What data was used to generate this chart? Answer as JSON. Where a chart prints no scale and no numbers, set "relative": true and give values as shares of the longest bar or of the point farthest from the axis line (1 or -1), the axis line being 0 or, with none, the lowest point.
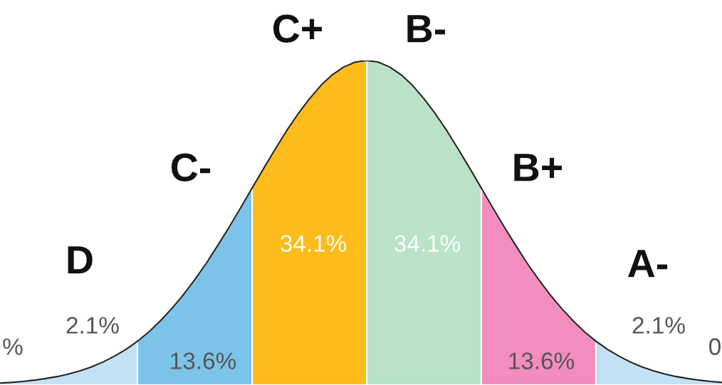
{
  "chart_data": {
    "type": "area",
    "relative": true,
    "categories": [
      null,
      null,
      null,
      null,
      null,
      null,
      null,
      null,
      null,
      null,
      null,
      null,
      null,
      null,
      null,
      null,
      null,
      null,
      null,
      null,
      null,
      null,
      null,
      null,
      null,
      null,
      null,
      null,
      null,
      null,
      null,
      null,
      null,
      null,
      null,
      null,
      null,
      null,
      null,
      null,
      null,
      null,
      null,
      null,
      null,
      null,
      null,
      null,
      null,
      null,
      null,
      null,
      null,
      null,
      null,
      null,
      null,
      null,
      null,
      null,
      null,
      null,
      null,
      null
    ],
    "series": [
      {
        "color": "#c2e1f4",
        "values": [
          0.006,
          0.008,
          0.011,
          0.015,
          0.02,
          0.026,
          0.034,
          0.044,
          0.056,
          0.071,
          0.089,
          0.11,
          0.135,
          null,
          null,
          null,
          null,
          null,
          null,
          null,
          null,
          null,
          null,
          null,
          null,
          null,
          null,
          null,
          null,
          null,
          null,
          null,
          null,
          null,
          null,
          null,
          null,
          null,
          null,
          null,
          null,
          null,
          null,
          null,
          null,
          null,
          null,
          null,
          null,
          null,
          null,
          null,
          null,
          null,
          null,
          null,
          null,
          null,
          null,
          null,
          null,
          null,
          null,
          null
        ]
      },
      {
        "color": "#7cc3e9",
        "values": [
          null,
          null,
          null,
          null,
          null,
          null,
          null,
          null,
          null,
          null,
          null,
          null,
          0.135,
          0.164,
          0.198,
          0.236,
          0.278,
          0.325,
          0.375,
          0.43,
          0.487,
          0.546,
          0.607,
          null,
          null,
          null,
          null,
          null,
          null,
          null,
          null,
          null,
          null,
          null,
          null,
          null,
          null,
          null,
          null,
          null,
          null,
          null,
          null,
          null,
          null,
          null,
          null,
          null,
          null,
          null,
          null,
          null,
          null,
          null,
          null,
          null,
          null,
          null,
          null,
          null,
          null,
          null,
          null,
          null
        ]
      },
      {
        "color": "#fdbc1b",
        "values": [
          null,
          null,
          null,
          null,
          null,
          null,
          null,
          null,
          null,
          null,
          null,
          null,
          null,
          null,
          null,
          null,
          null,
          null,
          null,
          null,
          null,
          null,
          0.607,
          0.667,
          0.726,
          0.783,
          0.835,
          0.882,
          0.923,
          0.956,
          0.98,
          0.995,
          1.0,
          null,
          null,
          null,
          null,
          null,
          null,
          null,
          null,
          null,
          null,
          null,
          null,
          null,
          null,
          null,
          null,
          null,
          null,
          null,
          null,
          null,
          null,
          null,
          null,
          null,
          null,
          null,
          null,
          null,
          null,
          null
        ]
      },
      {
        "color": "#bae2c7",
        "values": [
          null,
          null,
          null,
          null,
          null,
          null,
          null,
          null,
          null,
          null,
          null,
          null,
          null,
          null,
          null,
          null,
          null,
          null,
          null,
          null,
          null,
          null,
          null,
          null,
          null,
          null,
          null,
          null,
          null,
          null,
          null,
          null,
          1.0,
          0.995,
          0.98,
          0.956,
          0.923,
          0.882,
          0.835,
          0.783,
          0.726,
          0.667,
          0.607,
          null,
          null,
          null,
          null,
          null,
          null,
          null,
          null,
          null,
          null,
          null,
          null,
          null,
          null,
          null,
          null,
          null,
          null,
          null,
          null,
          null
        ]
      },
      {
        "color": "#f38cbf",
        "values": [
          null,
          null,
          null,
          null,
          null,
          null,
          null,
          null,
          null,
          null,
          null,
          null,
          null,
          null,
          null,
          null,
          null,
          null,
          null,
          null,
          null,
          null,
          null,
          null,
          null,
          null,
          null,
          null,
          null,
          null,
          null,
          null,
          null,
          null,
          null,
          null,
          null,
          null,
          null,
          null,
          null,
          null,
          0.607,
          0.546,
          0.487,
          0.43,
          0.375,
          0.325,
          0.278,
          0.236,
          0.198,
          0.164,
          0.135,
          null,
          null,
          null,
          null,
          null,
          null,
          null,
          null,
          null,
          null,
          null
        ]
      },
      {
        "color": "#c2e1f4",
        "values": [
          null,
          null,
          null,
          null,
          null,
          null,
          null,
          null,
          null,
          null,
          null,
          null,
          null,
          null,
          null,
          null,
          null,
          null,
          null,
          null,
          null,
          null,
          null,
          null,
          null,
          null,
          null,
          null,
          null,
          null,
          null,
          null,
          null,
          null,
          null,
          null,
          null,
          null,
          null,
          null,
          null,
          null,
          null,
          null,
          null,
          null,
          null,
          null,
          null,
          null,
          null,
          null,
          0.135,
          0.11,
          0.089,
          0.071,
          0.056,
          0.044,
          0.034,
          0.026,
          0.02,
          0.015,
          0.011,
          0.008
        ]
      }
    ],
    "annotations": [
      "C+",
      "B-",
      "C-",
      "B+",
      "D",
      "A-",
      "34.1%",
      "34.1%",
      "2.1%",
      "2.1%",
      "13.6%",
      "13.6%",
      "%",
      "0"
    ]
  }
}
